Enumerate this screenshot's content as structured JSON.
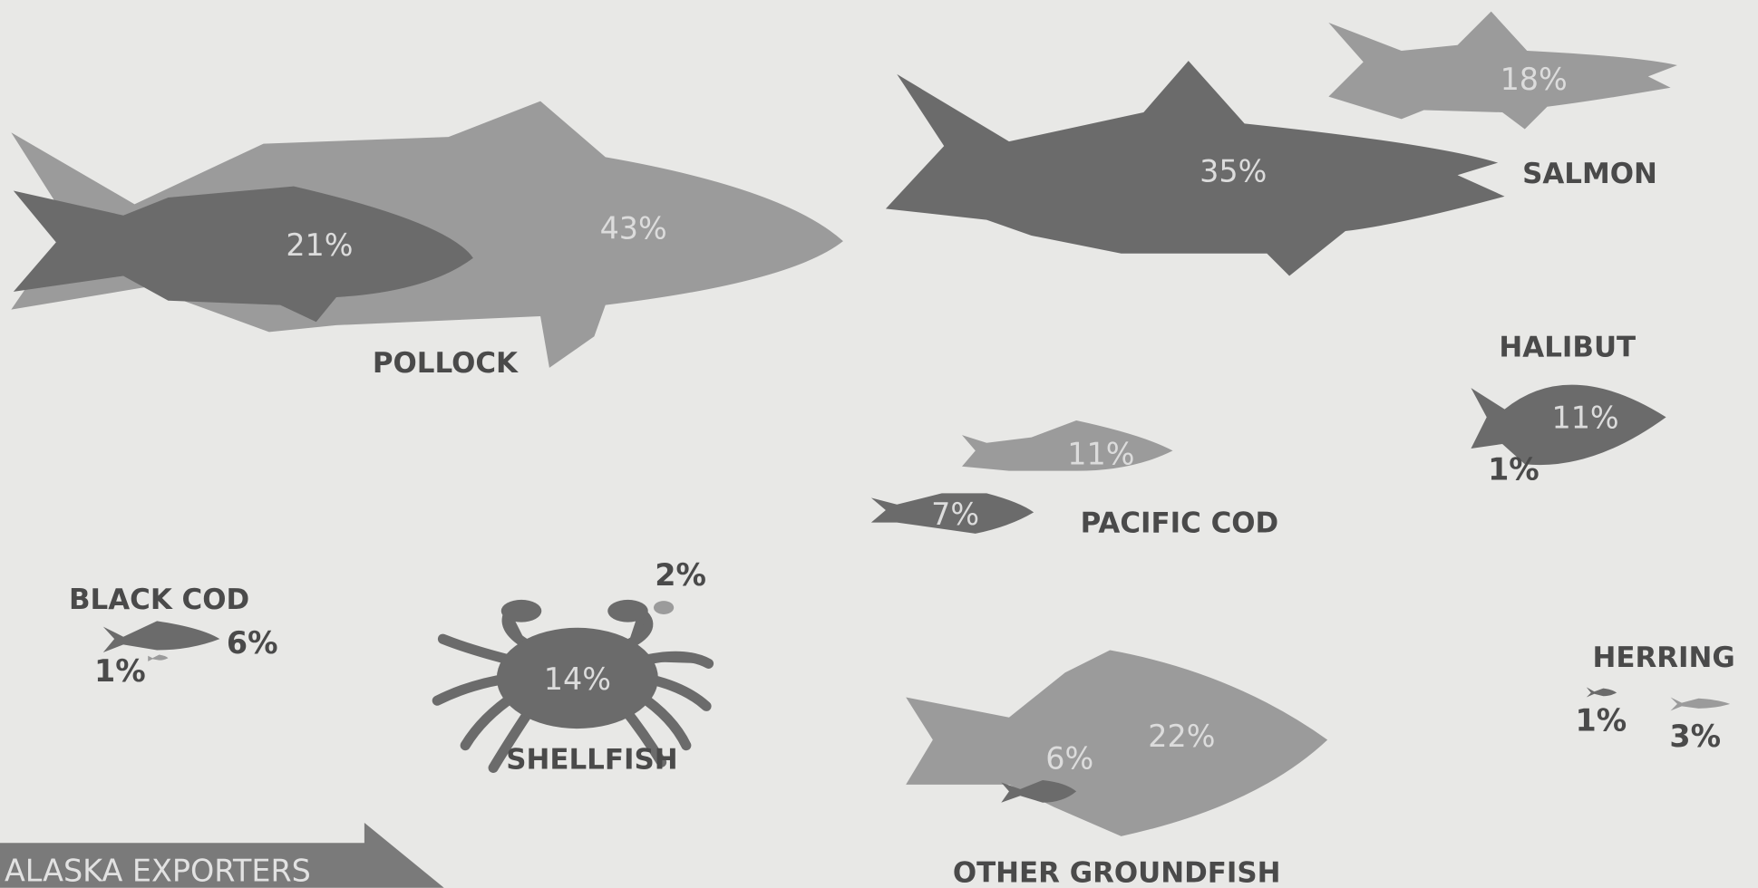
{
  "banner": "ALASKA EXPORTERS",
  "groups": [
    {
      "label": "POLLOCK",
      "items": [
        "21%",
        "43%"
      ]
    },
    {
      "label": "SALMON",
      "items": [
        "35%",
        "18%"
      ]
    },
    {
      "label": "HALIBUT",
      "items": [
        "11%",
        "1%"
      ]
    },
    {
      "label": "PACIFIC COD",
      "items": [
        "11%",
        "7%"
      ]
    },
    {
      "label": "BLACK COD",
      "items": [
        "6%",
        "1%"
      ]
    },
    {
      "label": "SHELLFISH",
      "items": [
        "14%",
        "2%"
      ]
    },
    {
      "label": "OTHER GROUNDFISH",
      "items": [
        "22%",
        "6%"
      ]
    },
    {
      "label": "HERRING",
      "items": [
        "1%",
        "3%"
      ]
    }
  ]
}
